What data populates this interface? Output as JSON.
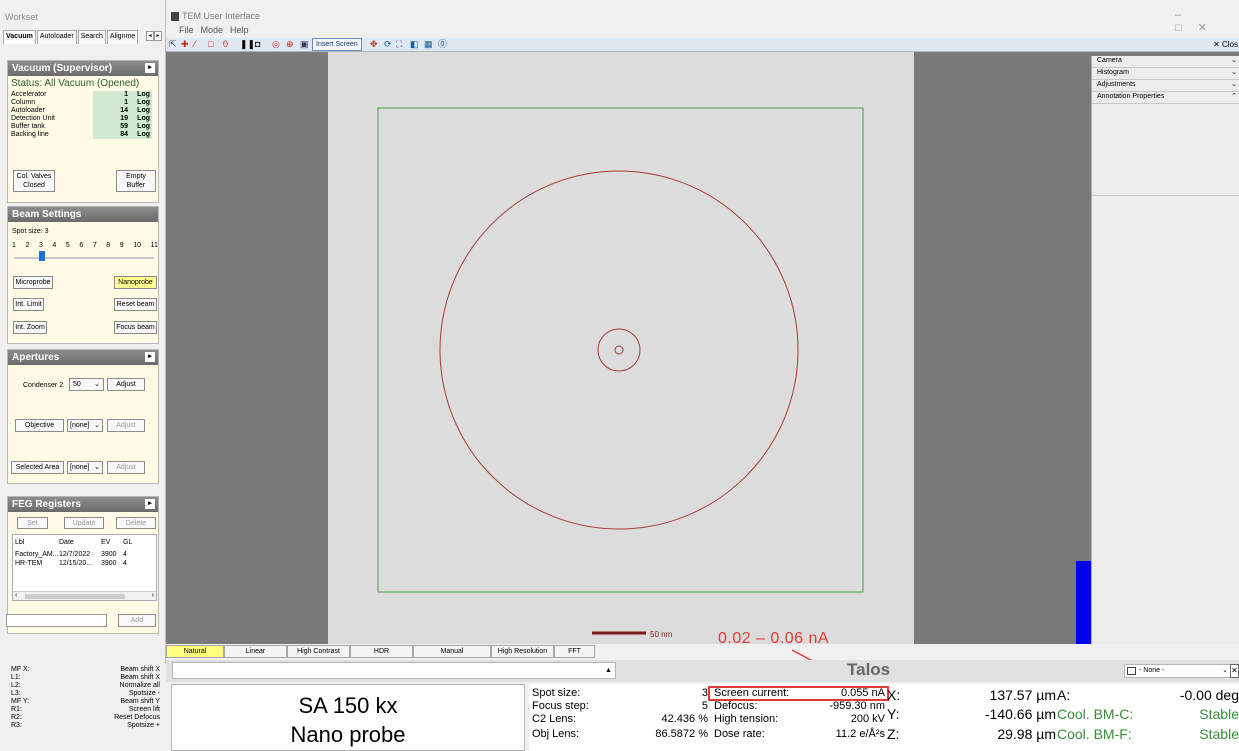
{
  "workset": {
    "title": "Workset",
    "tabs": [
      "Vacuum",
      "Autoloader",
      "Search",
      "Alignme"
    ],
    "arrows": [
      "◂",
      "▸"
    ]
  },
  "vacuum": {
    "title": "Vacuum (Supervisor)",
    "status": "Status: All Vacuum (Opened)",
    "rows": [
      {
        "label": "Accelerator",
        "value": "1",
        "unit": "Log"
      },
      {
        "label": "Column",
        "value": "1",
        "unit": "Log"
      },
      {
        "label": "Autoloader",
        "value": "14",
        "unit": "Log"
      },
      {
        "label": "Detection Unit",
        "value": "19",
        "unit": "Log"
      },
      {
        "label": "Buffer tank",
        "value": "59",
        "unit": "Log"
      },
      {
        "label": "Backing line",
        "value": "84",
        "unit": "Log"
      }
    ],
    "col_valves": [
      "Col. Valves",
      "Closed"
    ],
    "empty_buffer": [
      "Empty",
      "Buffer"
    ]
  },
  "beam": {
    "title": "Beam Settings",
    "spot_label": "Spot size: 3",
    "spot_ticks": [
      "1",
      "2",
      "3",
      "4",
      "5",
      "6",
      "7",
      "8",
      "9",
      "10",
      "11"
    ],
    "spot_value": 3,
    "microprobe": "Microprobe",
    "nanoprobe": "Nanoprobe",
    "int_limit": "Int. Limit",
    "reset_beam": "Reset beam",
    "int_zoom": "Int. Zoom",
    "focus_beam": "Focus beam"
  },
  "apertures": {
    "title": "Apertures",
    "condenser_label": "Condenser 2",
    "condenser_value": "50",
    "adjust": "Adjust",
    "objective": "Objective",
    "objective_value": "[none]",
    "selected_area": "Selected Area",
    "sa_value": "[none]"
  },
  "feg": {
    "title": "FEG Registers",
    "set": "Set",
    "update": "Update",
    "delete": "Delete",
    "headers": [
      "Lbl",
      "Date",
      "EV",
      "GL"
    ],
    "rows": [
      [
        "Factory_AM...",
        "12/7/2022",
        "3900",
        "4"
      ],
      [
        "HR-TEM",
        "12/15/20...",
        "3900",
        "4"
      ]
    ],
    "add": "Add"
  },
  "app": {
    "title": "TEM User Interface",
    "menu": [
      "File",
      "Mode",
      "Help"
    ],
    "insert_screen": "Insert Screen",
    "close_label": "✕ Clos"
  },
  "right_panel": [
    "Camera",
    "Histogram",
    "Adjustments",
    "Annotation Properties"
  ],
  "scale_bar": "50 nm",
  "filters": [
    "Natural",
    "Linear",
    "High Contrast",
    "HDR",
    "Manual",
    "High Resolution",
    "FFT"
  ],
  "annotation": "0.02 – 0.06 nA",
  "brand": "Talos",
  "preset_select": "- None -",
  "status_left": [
    [
      "MF X:",
      "Beam shift X"
    ],
    [
      "L1:",
      "Beam shift X"
    ],
    [
      "L2:",
      "Normalize all"
    ],
    [
      "L3:",
      "Spotsize -"
    ],
    [
      "MF Y:",
      "Beam shift Y"
    ],
    [
      "R1:",
      "Screen lift"
    ],
    [
      "R2:",
      "Reset Defocus"
    ],
    [
      "R3:",
      "Spotsize +"
    ]
  ],
  "magnification": {
    "line1": "SA 150 kx",
    "line2": "Nano probe"
  },
  "optics": {
    "spot_size_label": "Spot size:",
    "spot_size": "3",
    "focus_step_label": "Focus step:",
    "focus_step": "5",
    "c2_label": "C2 Lens:",
    "c2": "42.436 %",
    "obj_label": "Obj Lens:",
    "obj": "86.5872 %",
    "screen_current_label": "Screen current:",
    "screen_current": "0.055 nA",
    "defocus_label": "Defocus:",
    "defocus": "-959.30 nm",
    "ht_label": "High tension:",
    "ht": "200 kV",
    "dose_label": "Dose rate:",
    "dose": "11.2 e/Å²s"
  },
  "stage": {
    "x_label": "X:",
    "x": "137.57 µm",
    "y_label": "Y:",
    "y": "-140.66 µm",
    "z_label": "Z:",
    "z": "29.98 µm",
    "a_label": "A:",
    "a": "-0.00 deg",
    "bmc_label": "Cool. BM-C:",
    "bmc": "Stable",
    "bmf_label": "Cool. BM-F:",
    "bmf": "Stable"
  },
  "colors": {
    "highlight_red": "#e53935",
    "cool_green": "#3a8a3a",
    "probe_blue": "#0000f0"
  }
}
